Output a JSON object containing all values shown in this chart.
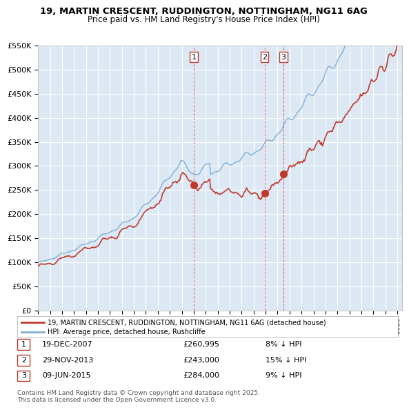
{
  "title": "19, MARTIN CRESCENT, RUDDINGTON, NOTTINGHAM, NG11 6AG",
  "subtitle": "Price paid vs. HM Land Registry's House Price Index (HPI)",
  "ylabel": "",
  "background_color": "#dce9f5",
  "plot_bg_color": "#dce9f5",
  "grid_color": "#ffffff",
  "hpi_color": "#7eadd4",
  "price_color": "#c0392b",
  "ylim": [
    0,
    550000
  ],
  "yticks": [
    0,
    50000,
    100000,
    150000,
    200000,
    250000,
    300000,
    350000,
    400000,
    450000,
    500000,
    550000
  ],
  "ytick_labels": [
    "£0",
    "£50K",
    "£100K",
    "£150K",
    "£200K",
    "£250K",
    "£300K",
    "£350K",
    "£400K",
    "£450K",
    "£500K",
    "£550K"
  ],
  "sale_dates": [
    "2007-12-19",
    "2013-11-29",
    "2015-06-09"
  ],
  "sale_prices": [
    260995,
    243000,
    284000
  ],
  "sale_labels": [
    "1",
    "2",
    "3"
  ],
  "sale_info": [
    {
      "num": "1",
      "date": "19-DEC-2007",
      "price": "£260,995",
      "hpi": "8% ↓ HPI"
    },
    {
      "num": "2",
      "date": "29-NOV-2013",
      "price": "£243,000",
      "hpi": "15% ↓ HPI"
    },
    {
      "num": "3",
      "date": "09-JUN-2015",
      "price": "£284,000",
      "hpi": "9% ↓ HPI"
    }
  ],
  "legend_line1": "19, MARTIN CRESCENT, RUDDINGTON, NOTTINGHAM, NG11 6AG (detached house)",
  "legend_line2": "HPI: Average price, detached house, Rushcliffe",
  "footer": "Contains HM Land Registry data © Crown copyright and database right 2025.\nThis data is licensed under the Open Government Licence v3.0.",
  "start_year": 1995,
  "end_year": 2025
}
